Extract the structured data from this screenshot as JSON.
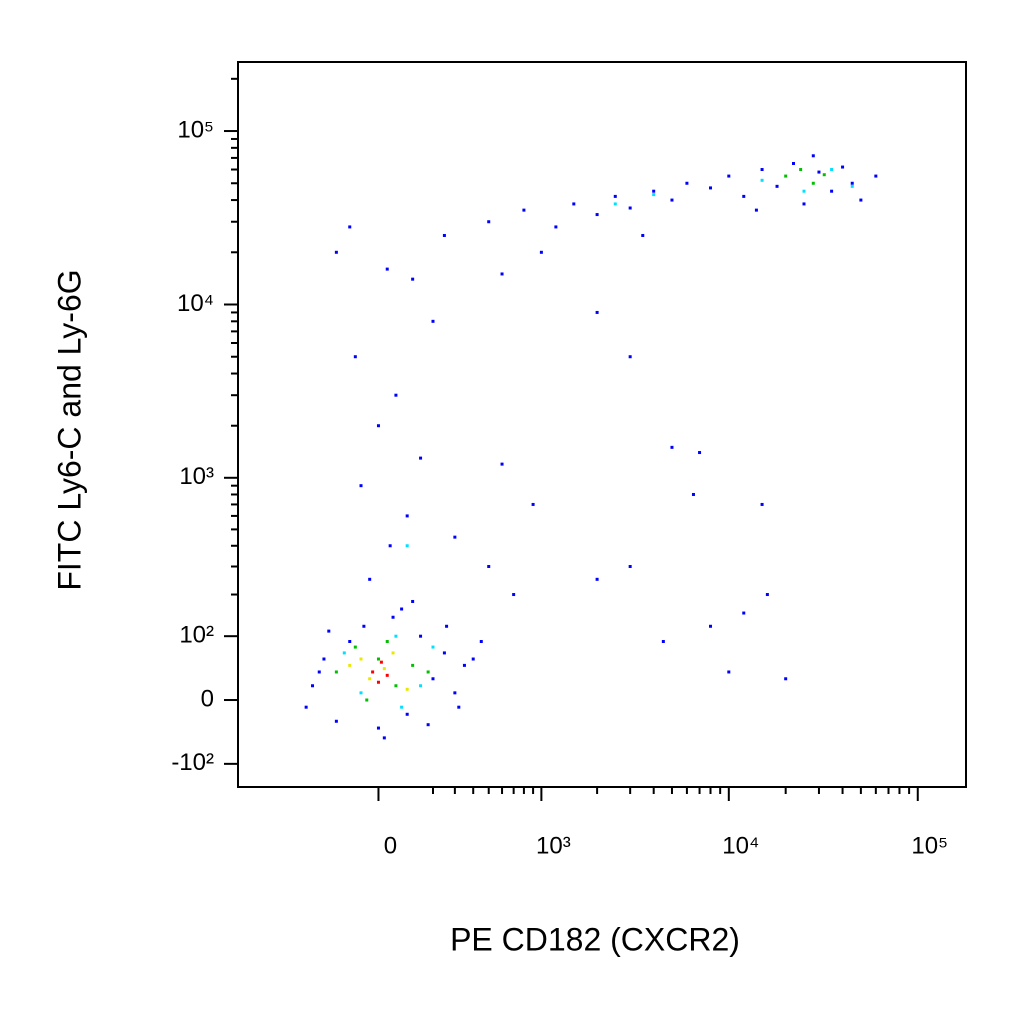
{
  "chart_data": {
    "type": "scatter",
    "xlabel": "PE CD182 (CXCR2)",
    "ylabel": "FITC Ly6-C and Ly-6G",
    "xscale": "biexponential",
    "yscale": "biexponential",
    "xlim": [
      -750,
      180000
    ],
    "ylim": [
      -150,
      250000
    ],
    "xticks": [
      0,
      {
        "value": 1000,
        "label": "10³"
      },
      {
        "value": 10000,
        "label": "10⁴"
      },
      {
        "value": 100000,
        "label": "10⁵"
      }
    ],
    "yticks": [
      {
        "value": -100,
        "label": "-10²"
      },
      0,
      {
        "value": 100,
        "label": "10²"
      },
      {
        "value": 1000,
        "label": "10³"
      },
      {
        "value": 10000,
        "label": "10⁴"
      },
      {
        "value": 100000,
        "label": "10⁵"
      }
    ],
    "xminorticks": [
      200,
      300,
      400,
      500,
      600,
      700,
      800,
      900,
      2000,
      3000,
      4000,
      5000,
      6000,
      7000,
      8000,
      9000,
      20000,
      30000,
      40000,
      50000,
      60000,
      70000,
      80000,
      90000
    ],
    "yminorticks": [
      200,
      300,
      400,
      500,
      600,
      700,
      800,
      900,
      2000,
      3000,
      4000,
      5000,
      6000,
      7000,
      8000,
      9000,
      20000,
      30000,
      40000,
      50000,
      60000,
      70000,
      80000,
      90000,
      200000
    ],
    "series": [
      {
        "color": "#0000ff",
        "x": [
          -250,
          -200,
          -150,
          -100,
          -50,
          0,
          50,
          100,
          150,
          200,
          250,
          300,
          350,
          -280,
          -180,
          80,
          180,
          260,
          400,
          450,
          -220,
          20,
          120,
          320,
          -30,
          40,
          100,
          -60,
          150,
          0,
          60,
          -80,
          200,
          120,
          -150,
          30,
          250,
          -100,
          300,
          500,
          700,
          600,
          900,
          500,
          800,
          1200,
          1500,
          2000,
          2500,
          3000,
          4000,
          5000,
          6000,
          8000,
          1000,
          3500,
          600,
          2000,
          3000,
          10000,
          12000,
          15000,
          18000,
          22000,
          25000,
          30000,
          35000,
          40000,
          45000,
          50000,
          60000,
          14000,
          28000,
          5000,
          7000,
          6500,
          15000,
          8000,
          12000,
          3000,
          16000,
          4500,
          10000,
          20000,
          2000
        ],
        "y": [
          20,
          60,
          -30,
          90,
          120,
          -40,
          140,
          -20,
          100,
          30,
          70,
          10,
          50,
          -10,
          110,
          160,
          -35,
          120,
          60,
          90,
          40,
          -55,
          180,
          -10,
          250,
          400,
          600,
          900,
          1300,
          2000,
          3000,
          5000,
          8000,
          14000,
          20000,
          16000,
          25000,
          28000,
          450,
          300,
          200,
          1200,
          700,
          30000,
          35000,
          28000,
          38000,
          33000,
          42000,
          36000,
          45000,
          40000,
          50000,
          47000,
          20000,
          25000,
          15000,
          9000,
          5000,
          55000,
          42000,
          60000,
          48000,
          65000,
          38000,
          58000,
          45000,
          62000,
          50000,
          40000,
          55000,
          35000,
          72000,
          1500,
          1400,
          800,
          700,
          120,
          150,
          300,
          200,
          90,
          40,
          30,
          250
        ]
      },
      {
        "color": "#00e0ff",
        "x": [
          -120,
          60,
          200,
          -60,
          150,
          80,
          100,
          2500,
          4000,
          15000,
          35000,
          45000,
          25000
        ],
        "y": [
          70,
          100,
          80,
          10,
          20,
          -10,
          400,
          38000,
          43000,
          52000,
          60000,
          48000,
          45000
        ]
      },
      {
        "color": "#00c000",
        "x": [
          -150,
          -80,
          0,
          60,
          120,
          -40,
          180,
          30,
          20000,
          28000,
          32000,
          24000
        ],
        "y": [
          40,
          80,
          60,
          20,
          50,
          0,
          40,
          90,
          55000,
          50000,
          56000,
          60000
        ]
      },
      {
        "color": "#e8e800",
        "x": [
          -100,
          -30,
          50,
          100,
          -60,
          20
        ],
        "y": [
          50,
          30,
          70,
          15,
          60,
          45
        ]
      },
      {
        "color": "#ff0000",
        "x": [
          -20,
          10,
          0,
          30
        ],
        "y": [
          40,
          55,
          25,
          35
        ]
      }
    ]
  }
}
